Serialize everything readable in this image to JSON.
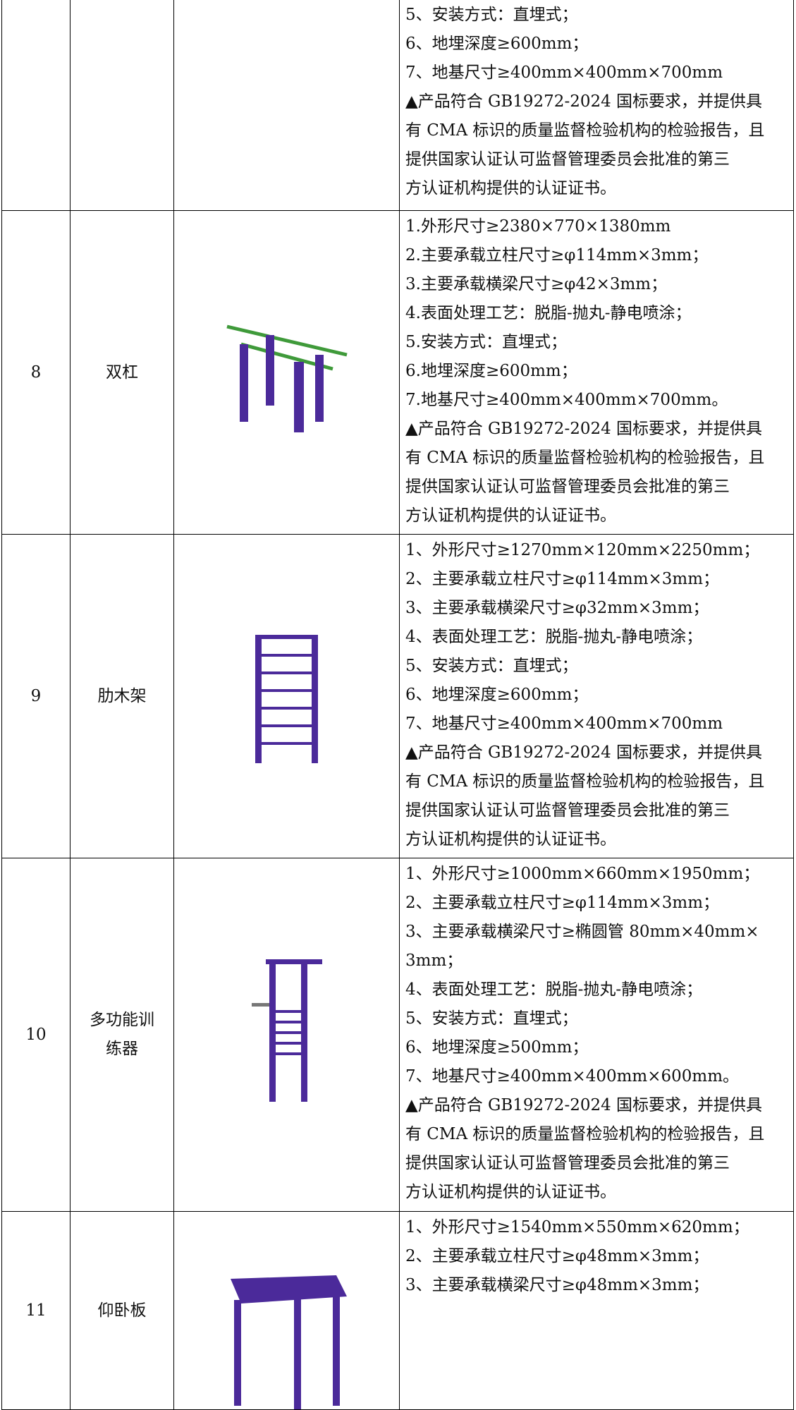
{
  "table": {
    "rows": [
      {
        "spec": [
          "5、安装方式：直埋式；",
          "6、地埋深度≥600mm；",
          "7、地基尺寸≥400mm×400mm×700mm",
          "▲产品符合 GB19272-2024 国标要求，并提供具",
          "有 CMA 标识的质量监督检验机构的检验报告，且",
          "提供国家认证认可监督管理委员会批准的第三",
          "方认证机构提供的认证证书。"
        ]
      },
      {
        "no": "8",
        "name": "双杠",
        "spec": [
          "1.外形尺寸≥2380×770×1380mm",
          "2.主要承载立柱尺寸≥φ114mm×3mm；",
          "3.主要承载横梁尺寸≥φ42×3mm；",
          "4.表面处理工艺：脱脂-抛丸-静电喷涂；",
          "5.安装方式：直埋式；",
          "6.地埋深度≥600mm；",
          "7.地基尺寸≥400mm×400mm×700mm。",
          "▲产品符合 GB19272-2024 国标要求，并提供具",
          "有 CMA 标识的质量监督检验机构的检验报告，且",
          "提供国家认证认可监督管理委员会批准的第三",
          "方认证机构提供的认证证书。"
        ]
      },
      {
        "no": "9",
        "name": "肋木架",
        "spec": [
          "1、外形尺寸≥1270mm×120mm×2250mm；",
          "2、主要承载立柱尺寸≥φ114mm×3mm；",
          "3、主要承载横梁尺寸≥φ32mm×3mm；",
          "4、表面处理工艺：脱脂-抛丸-静电喷涂；",
          "5、安装方式：直埋式；",
          "6、地埋深度≥600mm；",
          "7、地基尺寸≥400mm×400mm×700mm",
          "▲产品符合 GB19272-2024 国标要求，并提供具",
          "有 CMA 标识的质量监督检验机构的检验报告，且",
          "提供国家认证认可监督管理委员会批准的第三",
          "方认证机构提供的认证证书。"
        ]
      },
      {
        "no": "10",
        "name": "多功能训练器",
        "spec": [
          "1、外形尺寸≥1000mm×660mm×1950mm；",
          "2、主要承载立柱尺寸≥φ114mm×3mm；",
          "3、主要承载横梁尺寸≥椭圆管 80mm×40mm×",
          "3mm；",
          "4、表面处理工艺：脱脂-抛丸-静电喷涂；",
          "5、安装方式：直埋式；",
          "6、地埋深度≥500mm；",
          "7、地基尺寸≥400mm×400mm×600mm。",
          "▲产品符合 GB19272-2024 国标要求，并提供具",
          "有 CMA 标识的质量监督检验机构的检验报告，且",
          "提供国家认证认可监督管理委员会批准的第三",
          "方认证机构提供的认证证书。"
        ]
      },
      {
        "no": "11",
        "name": "仰卧板",
        "spec": [
          "1、外形尺寸≥1540mm×550mm×620mm；",
          "2、主要承载立柱尺寸≥φ48mm×3mm；",
          "3、主要承载横梁尺寸≥φ48mm×3mm；"
        ]
      }
    ]
  }
}
